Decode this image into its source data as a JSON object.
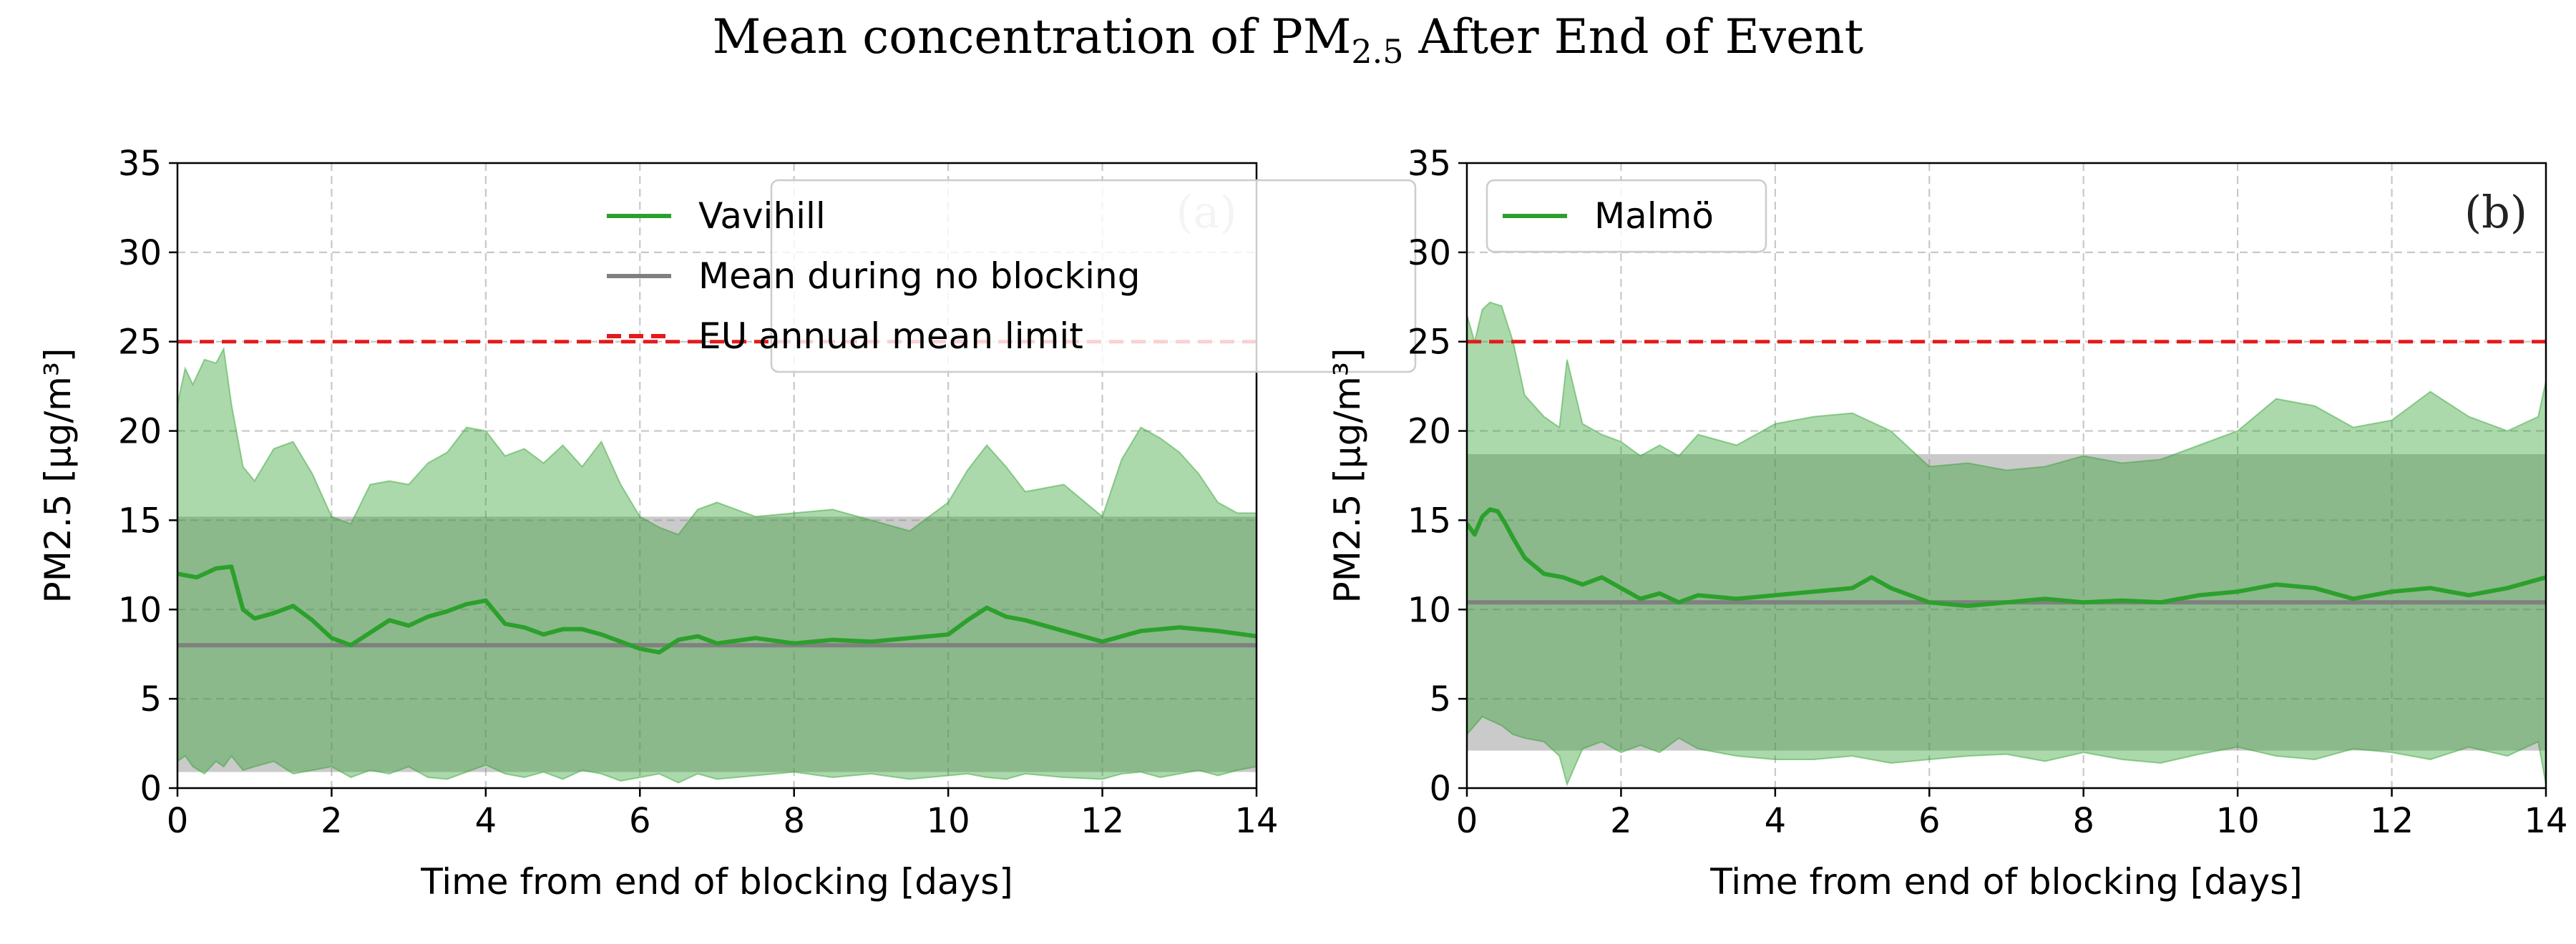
{
  "figure": {
    "title_main": "Mean concentration of PM",
    "title_sub": "2.5",
    "title_rest": " After End of Event"
  },
  "colors": {
    "series": "#2ca02c",
    "band": "#2ca02c",
    "mean_line": "#808080",
    "mean_band": "#808080",
    "limit": "#e41a1c",
    "grid": "#c8c8c8"
  },
  "chart_data": [
    {
      "type": "line",
      "panel_label": "(a)",
      "panel_label_color": "#c8c8c8",
      "xlabel": "Time from end of blocking [days]",
      "ylabel": "PM2.5 [µg/m³]",
      "xlim": [
        0,
        14
      ],
      "ylim": [
        0,
        35
      ],
      "xticks": [
        0,
        2,
        4,
        6,
        8,
        10,
        12,
        14
      ],
      "yticks": [
        0,
        5,
        10,
        15,
        20,
        25,
        30,
        35
      ],
      "grid": true,
      "legend_position": "top-right",
      "legend": [
        "Vavihill",
        "Mean during no blocking",
        "EU annual mean limit"
      ],
      "series": [
        {
          "name": "Vavihill",
          "x": [
            0,
            0.25,
            0.5,
            0.7,
            0.85,
            1.0,
            1.25,
            1.5,
            1.75,
            2.0,
            2.25,
            2.5,
            2.75,
            3.0,
            3.25,
            3.5,
            3.75,
            4.0,
            4.25,
            4.5,
            4.75,
            5.0,
            5.25,
            5.5,
            5.75,
            6.0,
            6.25,
            6.5,
            6.75,
            7.0,
            7.5,
            8.0,
            8.5,
            9.0,
            9.5,
            10.0,
            10.25,
            10.5,
            10.75,
            11.0,
            11.5,
            12.0,
            12.5,
            13.0,
            13.5,
            14.0
          ],
          "y": [
            12.0,
            11.8,
            12.3,
            12.4,
            10.0,
            9.5,
            9.8,
            10.2,
            9.4,
            8.4,
            8.0,
            8.7,
            9.4,
            9.1,
            9.6,
            9.9,
            10.3,
            10.5,
            9.2,
            9.0,
            8.6,
            8.9,
            8.9,
            8.6,
            8.2,
            7.8,
            7.6,
            8.3,
            8.5,
            8.1,
            8.4,
            8.1,
            8.3,
            8.2,
            8.4,
            8.6,
            9.4,
            10.1,
            9.6,
            9.4,
            8.8,
            8.2,
            8.8,
            9.0,
            8.8,
            8.5
          ]
        }
      ],
      "band": {
        "x": [
          0,
          0.1,
          0.2,
          0.35,
          0.5,
          0.6,
          0.7,
          0.85,
          1.0,
          1.25,
          1.5,
          1.75,
          2.0,
          2.25,
          2.5,
          2.75,
          3.0,
          3.25,
          3.5,
          3.75,
          4.0,
          4.25,
          4.5,
          4.75,
          5.0,
          5.25,
          5.5,
          5.75,
          6.0,
          6.25,
          6.5,
          6.75,
          7.0,
          7.5,
          8.0,
          8.5,
          9.0,
          9.5,
          10.0,
          10.25,
          10.5,
          10.75,
          11.0,
          11.5,
          12.0,
          12.25,
          12.5,
          12.75,
          13.0,
          13.25,
          13.5,
          13.75,
          14.0
        ],
        "upper": [
          21.5,
          23.5,
          22.6,
          24.0,
          23.8,
          24.6,
          21.5,
          18.0,
          17.2,
          19.0,
          19.4,
          17.6,
          15.2,
          14.8,
          17.0,
          17.2,
          17.0,
          18.2,
          18.8,
          20.2,
          20.0,
          18.6,
          19.0,
          18.2,
          19.2,
          18.0,
          19.4,
          17.0,
          15.2,
          14.6,
          14.2,
          15.6,
          16.0,
          15.2,
          15.4,
          15.6,
          15.0,
          14.4,
          16.0,
          17.8,
          19.2,
          18.0,
          16.6,
          17.0,
          15.2,
          18.4,
          20.2,
          19.6,
          18.8,
          17.6,
          16.0,
          15.4,
          15.4
        ],
        "lower": [
          1.5,
          1.8,
          1.2,
          0.8,
          1.5,
          1.2,
          1.8,
          1.0,
          1.2,
          1.5,
          0.8,
          1.0,
          1.2,
          0.6,
          1.0,
          0.8,
          1.2,
          0.6,
          0.5,
          0.9,
          1.3,
          0.8,
          0.6,
          0.9,
          0.5,
          1.0,
          0.8,
          0.4,
          0.6,
          0.8,
          0.3,
          0.8,
          0.5,
          0.7,
          0.9,
          0.6,
          0.8,
          0.5,
          0.7,
          0.8,
          0.6,
          0.5,
          0.8,
          0.6,
          0.5,
          0.8,
          0.9,
          0.6,
          0.8,
          1.0,
          0.7,
          1.0,
          1.2
        ]
      },
      "mean_no_blocking": 8.0,
      "mean_band": [
        0.9,
        15.2
      ],
      "eu_limit": 25
    },
    {
      "type": "line",
      "panel_label": "(b)",
      "panel_label_color": "#222222",
      "xlabel": "Time from end of blocking [days]",
      "ylabel": "PM2.5 [µg/m³]",
      "xlim": [
        0,
        14
      ],
      "ylim": [
        0,
        35
      ],
      "xticks": [
        0,
        2,
        4,
        6,
        8,
        10,
        12,
        14
      ],
      "yticks": [
        0,
        5,
        10,
        15,
        20,
        25,
        30,
        35
      ],
      "grid": true,
      "legend_position": "top-left",
      "legend": [
        "Malmö"
      ],
      "series": [
        {
          "name": "Malmö",
          "x": [
            0,
            0.1,
            0.2,
            0.3,
            0.4,
            0.5,
            0.6,
            0.75,
            1.0,
            1.25,
            1.5,
            1.75,
            2.0,
            2.25,
            2.5,
            2.75,
            3.0,
            3.5,
            4.0,
            4.5,
            5.0,
            5.25,
            5.5,
            6.0,
            6.5,
            7.0,
            7.5,
            8.0,
            8.5,
            9.0,
            9.5,
            10.0,
            10.5,
            11.0,
            11.5,
            12.0,
            12.5,
            13.0,
            13.5,
            14.0
          ],
          "y": [
            14.8,
            14.2,
            15.2,
            15.6,
            15.5,
            14.8,
            14.0,
            12.9,
            12.0,
            11.8,
            11.4,
            11.8,
            11.2,
            10.6,
            10.9,
            10.4,
            10.8,
            10.6,
            10.8,
            11.0,
            11.2,
            11.8,
            11.2,
            10.4,
            10.2,
            10.4,
            10.6,
            10.4,
            10.5,
            10.4,
            10.8,
            11.0,
            11.4,
            11.2,
            10.6,
            11.0,
            11.2,
            10.8,
            11.2,
            11.8
          ]
        }
      ],
      "band": {
        "x": [
          0,
          0.1,
          0.2,
          0.3,
          0.45,
          0.6,
          0.75,
          1.0,
          1.2,
          1.3,
          1.5,
          1.75,
          2.0,
          2.25,
          2.5,
          2.75,
          3.0,
          3.5,
          4.0,
          4.5,
          5.0,
          5.5,
          6.0,
          6.5,
          7.0,
          7.5,
          8.0,
          8.5,
          9.0,
          9.5,
          10.0,
          10.5,
          11.0,
          11.5,
          12.0,
          12.5,
          13.0,
          13.5,
          13.9,
          14.0
        ],
        "upper": [
          26.5,
          25.0,
          26.8,
          27.2,
          27.0,
          25.0,
          22.0,
          20.8,
          20.2,
          24.0,
          20.4,
          19.8,
          19.4,
          18.6,
          19.2,
          18.6,
          19.8,
          19.2,
          20.4,
          20.8,
          21.0,
          20.0,
          18.0,
          18.2,
          17.8,
          18.0,
          18.6,
          18.2,
          18.4,
          19.2,
          20.0,
          21.8,
          21.4,
          20.2,
          20.6,
          22.2,
          20.8,
          20.0,
          20.8,
          22.8
        ],
        "lower": [
          3.0,
          3.5,
          4.0,
          3.8,
          3.5,
          3.0,
          2.8,
          2.6,
          1.8,
          0.2,
          2.2,
          2.6,
          2.0,
          2.4,
          2.0,
          2.8,
          2.2,
          1.8,
          1.6,
          1.6,
          1.8,
          1.4,
          1.6,
          1.8,
          1.9,
          1.5,
          2.0,
          1.6,
          1.4,
          1.9,
          2.3,
          1.8,
          1.6,
          2.2,
          2.0,
          1.6,
          2.3,
          1.8,
          2.6,
          0.2
        ]
      },
      "mean_no_blocking": 10.4,
      "mean_band": [
        2.1,
        18.7
      ],
      "eu_limit": 25
    }
  ]
}
